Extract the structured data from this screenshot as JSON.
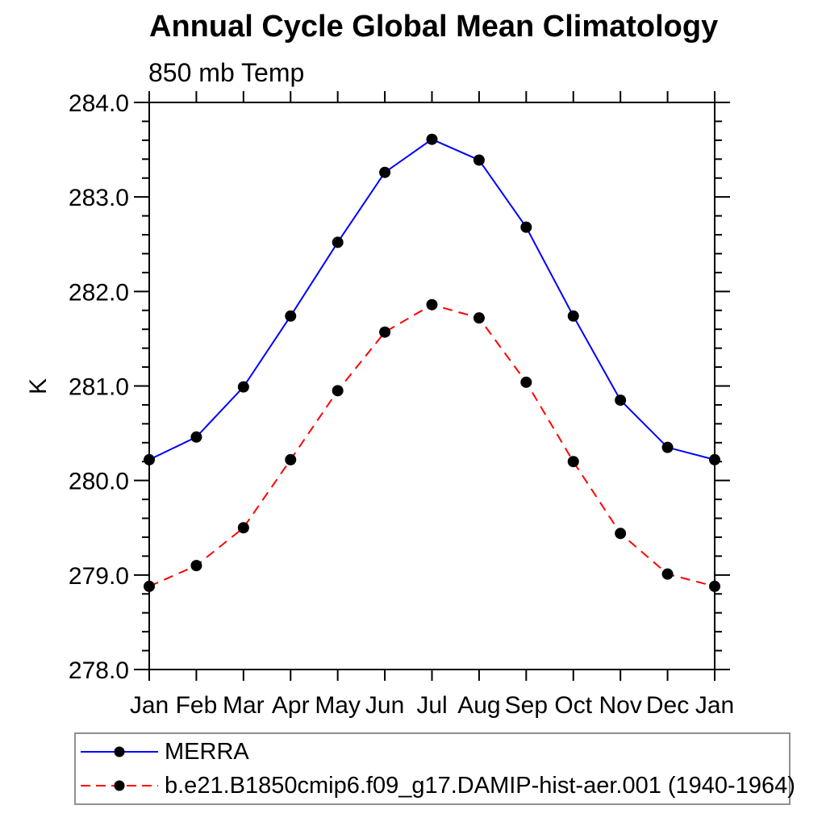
{
  "chart_data": {
    "type": "line",
    "title": "Annual Cycle Global Mean Climatology",
    "subtitle": "850 mb Temp",
    "ylabel": "K",
    "xlabel": "",
    "categories": [
      "Jan",
      "Feb",
      "Mar",
      "Apr",
      "May",
      "Jun",
      "Jul",
      "Aug",
      "Sep",
      "Oct",
      "Nov",
      "Dec",
      "Jan"
    ],
    "ylim": [
      278.0,
      284.0
    ],
    "ytick_major": 1.0,
    "ytick_minor": 0.2,
    "ytick_label_format": "one-decimal",
    "grid": false,
    "legend_position": "bottom-left-box",
    "axis_color": "#000000",
    "marker": "filled-circle",
    "marker_color": "#000000",
    "series": [
      {
        "name": "MERRA",
        "color": "#0000ff",
        "style": "solid",
        "values": [
          280.22,
          280.46,
          280.99,
          281.74,
          282.52,
          283.26,
          283.61,
          283.39,
          282.68,
          281.74,
          280.85,
          280.35,
          280.22
        ]
      },
      {
        "name": "b.e21.B1850cmip6.f09_g17.DAMIP-hist-aer.001 (1940-1964)",
        "color": "#ff0000",
        "style": "dashed",
        "values": [
          278.88,
          279.1,
          279.5,
          280.22,
          280.95,
          281.57,
          281.86,
          281.72,
          281.04,
          280.2,
          279.44,
          279.01,
          278.88
        ]
      }
    ]
  }
}
